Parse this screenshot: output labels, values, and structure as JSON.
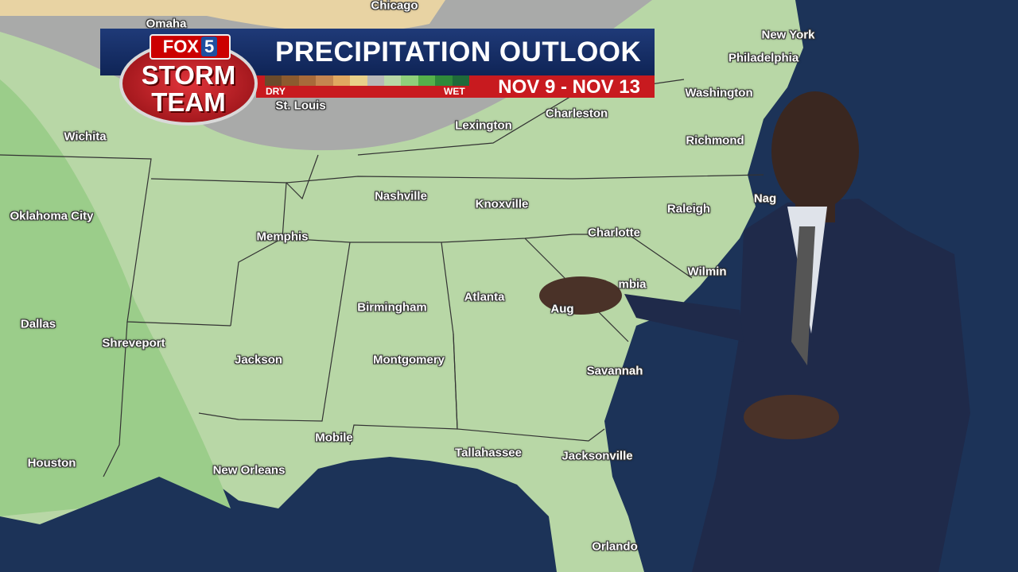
{
  "logo": {
    "brand": "FOX",
    "channel": "5",
    "line1": "STORM",
    "line2": "TEAM"
  },
  "banner": {
    "title": "PRECIPITATION OUTLOOK",
    "dates": "NOV 9 - NOV 13",
    "legend_low": "DRY",
    "legend_high": "WET"
  },
  "map": {
    "cities": [
      "Omaha",
      "Chicago",
      "New York",
      "Philadelphia",
      "Washington",
      "St. Louis",
      "Lexington",
      "Charleston",
      "Richmond",
      "Wichita",
      "Nashville",
      "Knoxville",
      "Raleigh",
      "Nag",
      "Oklahoma City",
      "Memphis",
      "Charlotte",
      "Wilmin",
      "mbia",
      "Birmingham",
      "Atlanta",
      "Aug",
      "Dallas",
      "Shreveport",
      "Jackson",
      "Montgomery",
      "Savannah",
      "Mobile",
      "Tallahassee",
      "Jacksonville",
      "Houston",
      "New Orleans",
      "Orlando"
    ]
  }
}
